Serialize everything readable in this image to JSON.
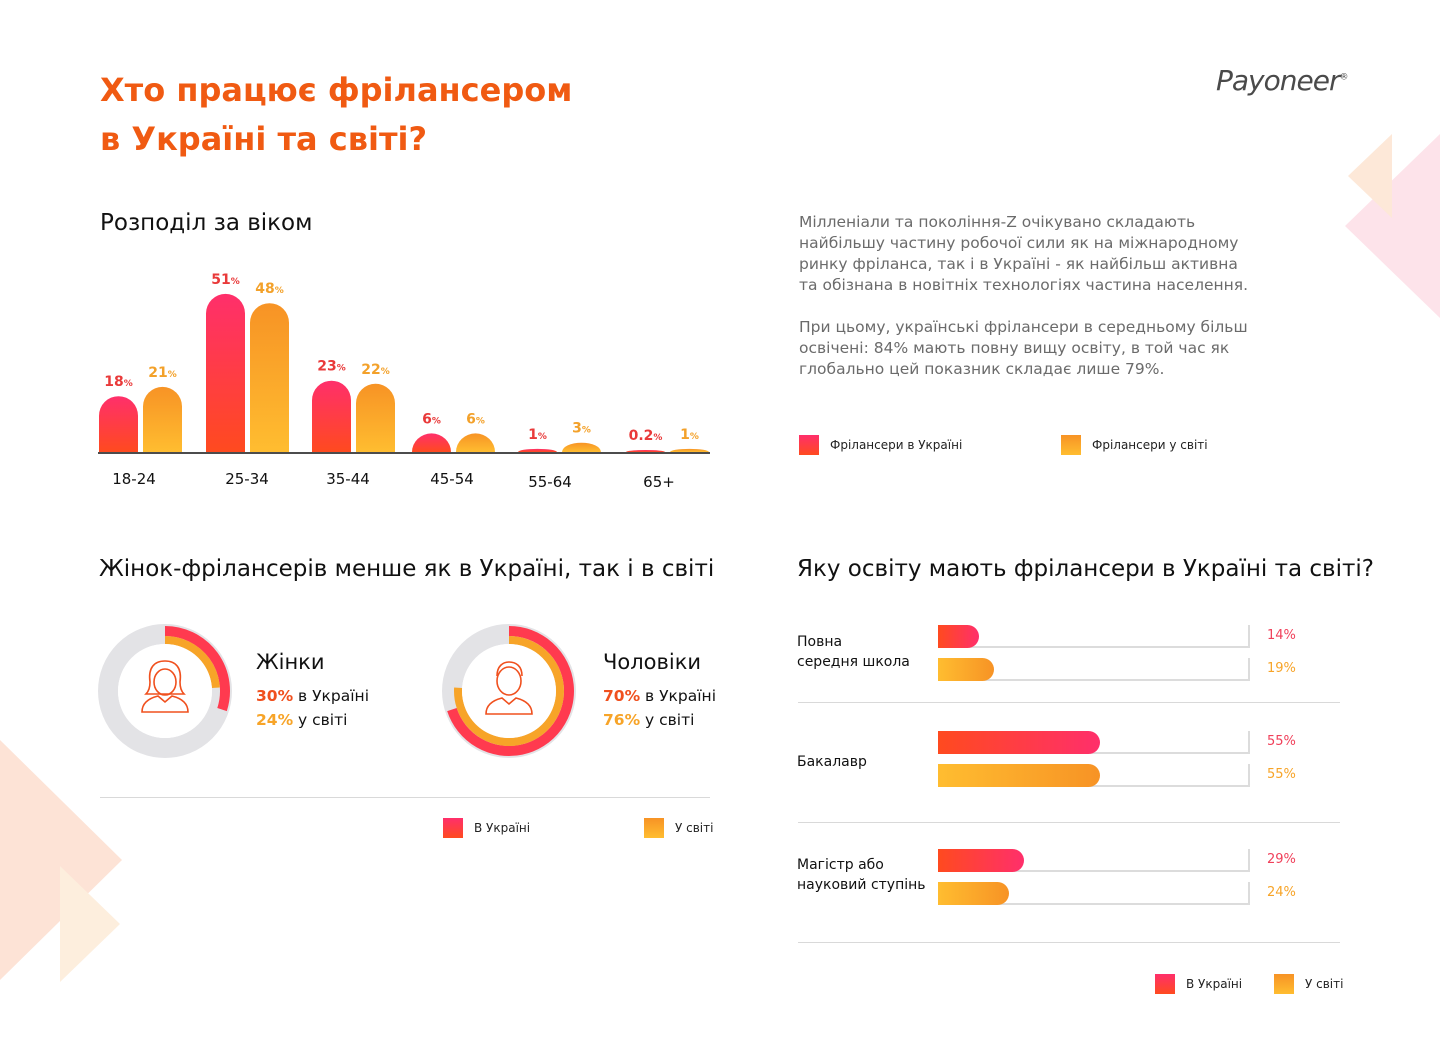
{
  "header": {
    "title_line1": "Хто працює фрілансером",
    "title_line2": "в Україні та світі?",
    "logo": "Payoneer",
    "logo_mark": "®"
  },
  "colors": {
    "accent": "#f05a12",
    "ukraine_top": "#ff2f6b",
    "ukraine_bottom": "#ff4a1f",
    "world_top": "#f79325",
    "world_bottom": "#ffbd30",
    "track": "#e3e3e6"
  },
  "age_section": {
    "heading": "Розподіл за віком",
    "description_p1": "Мілленіали та покоління-Z очікувано складають найбільшу частину робочої сили як на міжнародному ринку фріланса, так і в Україні - як найбільш активна та обізнана в новітніх технологіях частина населення.",
    "description_p2": "При цьому, українські фрілансери в середньому більш освічені: 84% мають повну вищу освіту, в той час як глобально цей показник складає лише 79%.",
    "legend_ukraine": "Фрілансери в Україні",
    "legend_world": "Фрілансери у світі"
  },
  "gender_section": {
    "heading": "Жінок-фрілансерів менше як в Україні, так і в світі",
    "women": {
      "label": "Жінки",
      "ua_value": "30%",
      "ua_text": "в Україні",
      "world_value": "24%",
      "world_text": "у світі"
    },
    "men": {
      "label": "Чоловіки",
      "ua_value": "70%",
      "ua_text": "в Україні",
      "world_value": "76%",
      "world_text": "у світі"
    },
    "legend_ukraine": "В Україні",
    "legend_world": "У світі"
  },
  "education_section": {
    "heading": "Яку освіту мають фрілансери в Україні та світі?",
    "legend_ukraine": "В Україні",
    "legend_world": "У світі"
  },
  "chart_data": [
    {
      "type": "bar",
      "title": "Розподіл за віком",
      "categories": [
        "18-24",
        "25-34",
        "35-44",
        "45-54",
        "55-64",
        "65+"
      ],
      "series": [
        {
          "name": "Фрілансери в Україні",
          "values": [
            18,
            51,
            23,
            6,
            1,
            0.2
          ]
        },
        {
          "name": "Фрілансери у світі",
          "values": [
            21,
            48,
            22,
            6,
            3,
            1
          ]
        }
      ],
      "unit": "%"
    },
    {
      "type": "pie",
      "title": "Жінок-фрілансерів менше як в Україні, так і в світі",
      "categories": [
        "Жінки",
        "Чоловіки"
      ],
      "series": [
        {
          "name": "В Україні",
          "values": [
            30,
            70
          ]
        },
        {
          "name": "У світі",
          "values": [
            24,
            76
          ]
        }
      ],
      "unit": "%"
    },
    {
      "type": "bar",
      "orientation": "horizontal",
      "title": "Яку освіту мають фрілансери в Україні та світі?",
      "categories": [
        "Повна середня школа",
        "Бакалавр",
        "Магістр або науковий ступінь"
      ],
      "category_lines": [
        [
          "Повна",
          "середня школа"
        ],
        [
          "Бакалавр"
        ],
        [
          "Магістр або",
          "науковий ступінь"
        ]
      ],
      "series": [
        {
          "name": "В Україні",
          "values": [
            14,
            55,
            29
          ]
        },
        {
          "name": "У світі",
          "values": [
            19,
            55,
            24
          ]
        }
      ],
      "unit": "%"
    }
  ]
}
